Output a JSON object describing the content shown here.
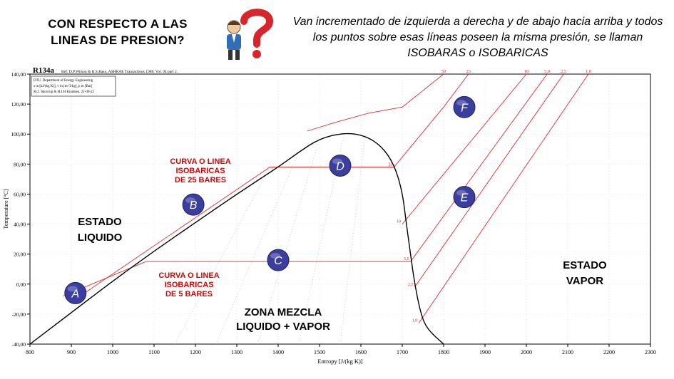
{
  "header": {
    "title_line1": "CON RESPECTO A LAS",
    "title_line2": "LINEAS DE PRESION?",
    "description": "Van incrementado de izquierda a derecha y de abajo hacia arriba y todos los puntos sobre esas líneas poseen la misma presión, se llaman ISOBARAS o ISOBARICAS"
  },
  "chart_data": {
    "type": "line",
    "title": "R134a",
    "reference": "Ref: D.P.Wilson & R.S.Basu, ASHRAE Transactions 1988, Vol. 94 part 2.",
    "legend_box": [
      "DTU, Department of Energy Engineering",
      "s in [kJ/(kg K)], v in [m^3/kg], p in [Bar]",
      "M.J. Skovrup & H.J.H Knudsen. 21-09-22"
    ],
    "xlabel": "Entropy [J/(kg K)]",
    "ylabel": "Temperature [°C]",
    "xlim": [
      800,
      2300
    ],
    "ylim": [
      -40,
      140
    ],
    "x_ticks": [
      "800",
      "900",
      "1000",
      "1100",
      "1200",
      "1300",
      "1400",
      "1500",
      "1600",
      "1700",
      "1800",
      "1900",
      "2000",
      "2100",
      "2200",
      "2300"
    ],
    "y_ticks": [
      "-40,00",
      "-20,00",
      "0,00",
      "20,00",
      "40,00",
      "60,00",
      "80,00",
      "100,00",
      "120,00",
      "140,00"
    ],
    "saturation_dome": [
      [
        800,
        -40
      ],
      [
        900,
        -19
      ],
      [
        1000,
        2
      ],
      [
        1100,
        22
      ],
      [
        1200,
        41
      ],
      [
        1300,
        60
      ],
      [
        1400,
        78
      ],
      [
        1450,
        88
      ],
      [
        1500,
        97
      ],
      [
        1560,
        101
      ],
      [
        1610,
        99
      ],
      [
        1650,
        92
      ],
      [
        1680,
        80
      ],
      [
        1700,
        62
      ],
      [
        1710,
        40
      ],
      [
        1720,
        20
      ],
      [
        1730,
        0
      ],
      [
        1745,
        -20
      ],
      [
        1760,
        -30
      ],
      [
        1800,
        -40
      ]
    ],
    "isobar_labels": [
      "50",
      "25",
      "10",
      "5,0",
      "2,5",
      "1,0"
    ],
    "isobars": [
      {
        "name": "50",
        "points": [
          [
            1470,
            102
          ],
          [
            1540,
            108
          ],
          [
            1620,
            114
          ],
          [
            1700,
            118
          ],
          [
            1800,
            140
          ]
        ]
      },
      {
        "name": "25",
        "points": [
          [
            900,
            -12
          ],
          [
            1380,
            78
          ],
          [
            1680,
            78
          ],
          [
            1800,
            118
          ],
          [
            1860,
            140
          ]
        ]
      },
      {
        "name": "10",
        "points": [
          [
            1700,
            40
          ],
          [
            2000,
            140
          ]
        ]
      },
      {
        "name": "5,0",
        "points": [
          [
            880,
            -8
          ],
          [
            1080,
            15
          ],
          [
            1720,
            15
          ],
          [
            2050,
            140
          ]
        ]
      },
      {
        "name": "2,5",
        "points": [
          [
            1730,
            -2
          ],
          [
            2090,
            140
          ]
        ]
      },
      {
        "name": "1,0",
        "points": [
          [
            1740,
            -26
          ],
          [
            2150,
            140
          ]
        ]
      }
    ],
    "inline_labels": [
      {
        "text": "25",
        "x": 1680,
        "y": 78
      },
      {
        "text": "10",
        "x": 1700,
        "y": 40
      },
      {
        "text": "5,0",
        "x": 1720,
        "y": 15
      },
      {
        "text": "2,5",
        "x": 1730,
        "y": -2
      },
      {
        "text": "1,0",
        "x": 1740,
        "y": -26
      }
    ],
    "points": [
      {
        "label": "A",
        "x": 910,
        "y": -6
      },
      {
        "label": "B",
        "x": 1195,
        "y": 53
      },
      {
        "label": "C",
        "x": 1400,
        "y": 16
      },
      {
        "label": "D",
        "x": 1550,
        "y": 79
      },
      {
        "label": "E",
        "x": 1850,
        "y": 58
      },
      {
        "label": "F",
        "x": 1850,
        "y": 118
      }
    ],
    "annotations": {
      "isobar25": [
        "CURVA O LINEA",
        "ISOBARICAS",
        "DE 25 BARES"
      ],
      "isobar5": [
        "CURVA O LINEA",
        "ISOBARICAS",
        "DE 5 BARES"
      ],
      "liquid": [
        "ESTADO",
        "LIQUIDO"
      ],
      "vapor": [
        "ESTADO",
        "VAPOR"
      ],
      "mixture": [
        "ZONA MEZCLA",
        "LIQUIDO + VAPOR"
      ]
    },
    "colors": {
      "dome": "#000000",
      "isobar": "#e8282c",
      "annotation": "#e00000",
      "point_fill": "#3a3e9e",
      "grid": "#cfcfcf"
    },
    "grid": true
  }
}
